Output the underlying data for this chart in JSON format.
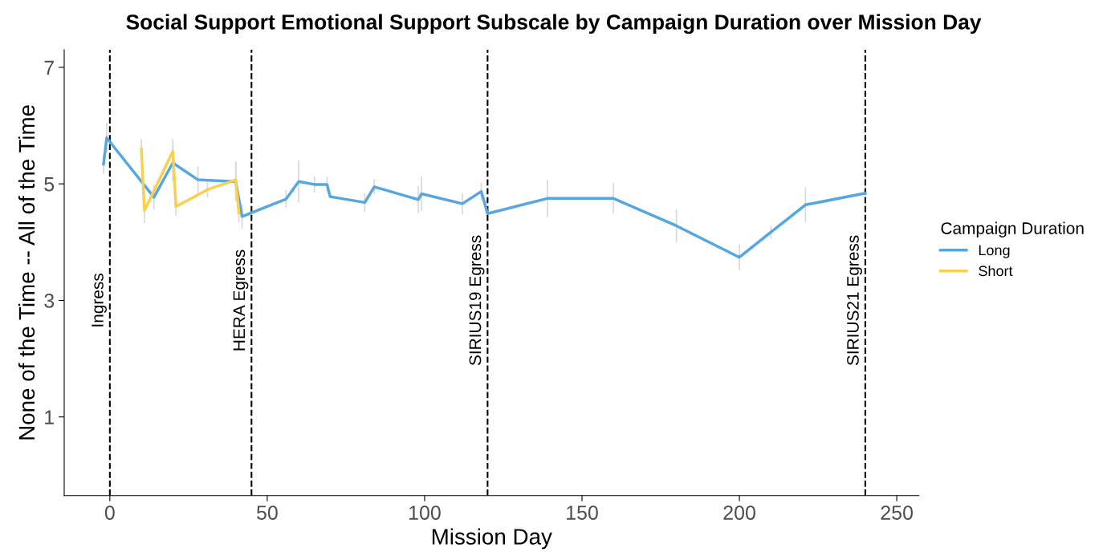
{
  "chart_data": {
    "type": "line",
    "title": "Social Support Emotional Support Subscale by Campaign Duration over Mission Day",
    "xlabel": "Mission Day",
    "ylabel": "None of the Time -- All of the Time",
    "legend_title": "Campaign Duration",
    "legend": "right",
    "grid": false,
    "marker": "none",
    "line_style": "solid",
    "xlim": [
      -14.5,
      257
    ],
    "xticks": [
      0,
      50,
      100,
      150,
      200,
      250
    ],
    "ylim": [
      -0.35,
      7.3
    ],
    "yticks": [
      1,
      3,
      5,
      7
    ],
    "series": [
      {
        "name": "Long",
        "color": "#56a6e0",
        "x": [
          -2,
          -1,
          14,
          20,
          28,
          40,
          42,
          56,
          60,
          65,
          69,
          70,
          81,
          84,
          98,
          99,
          112,
          118,
          120,
          139,
          160,
          180,
          200,
          210,
          221,
          240
        ],
        "values": [
          5.34,
          5.79,
          4.77,
          5.36,
          5.07,
          5.04,
          4.44,
          4.74,
          5.04,
          4.99,
          4.99,
          4.78,
          4.68,
          4.95,
          4.73,
          4.83,
          4.66,
          4.87,
          4.49,
          4.75,
          4.75,
          4.28,
          3.74,
          4.17,
          4.64,
          4.84
        ],
        "errors": [
          0.15,
          0.25,
          0.2,
          0.3,
          0.22,
          0.33,
          0.2,
          0.14,
          0.35,
          0.13,
          0.12,
          null,
          0.15,
          0.12,
          0.22,
          0.28,
          0.17,
          0.14,
          null,
          0.31,
          0.25,
          0.27,
          0.21,
          0.1,
          0.29,
          0.28
        ]
      },
      {
        "name": "Short",
        "color": "#f7d050",
        "x": [
          10,
          11,
          20,
          21,
          31,
          40,
          41
        ],
        "values": [
          5.6,
          4.54,
          5.56,
          4.61,
          4.9,
          5.07,
          4.5
        ],
        "errors": [
          0.15,
          0.2,
          0.2,
          0.15,
          0.12,
          0.3,
          0.15
        ]
      }
    ],
    "ref_lines": [
      {
        "axis": "x",
        "value": 0,
        "label": "Ingress",
        "color": "#000000",
        "line_style": "dashed"
      },
      {
        "axis": "x",
        "value": 45,
        "label": "HERA Egress",
        "color": "#000000",
        "line_style": "dashed"
      },
      {
        "axis": "x",
        "value": 120,
        "label": "SIRIUS19 Egress",
        "color": "#000000",
        "line_style": "dashed"
      },
      {
        "axis": "x",
        "value": 240,
        "label": "SIRIUS21 Egress",
        "color": "#000000",
        "line_style": "dashed"
      }
    ]
  }
}
